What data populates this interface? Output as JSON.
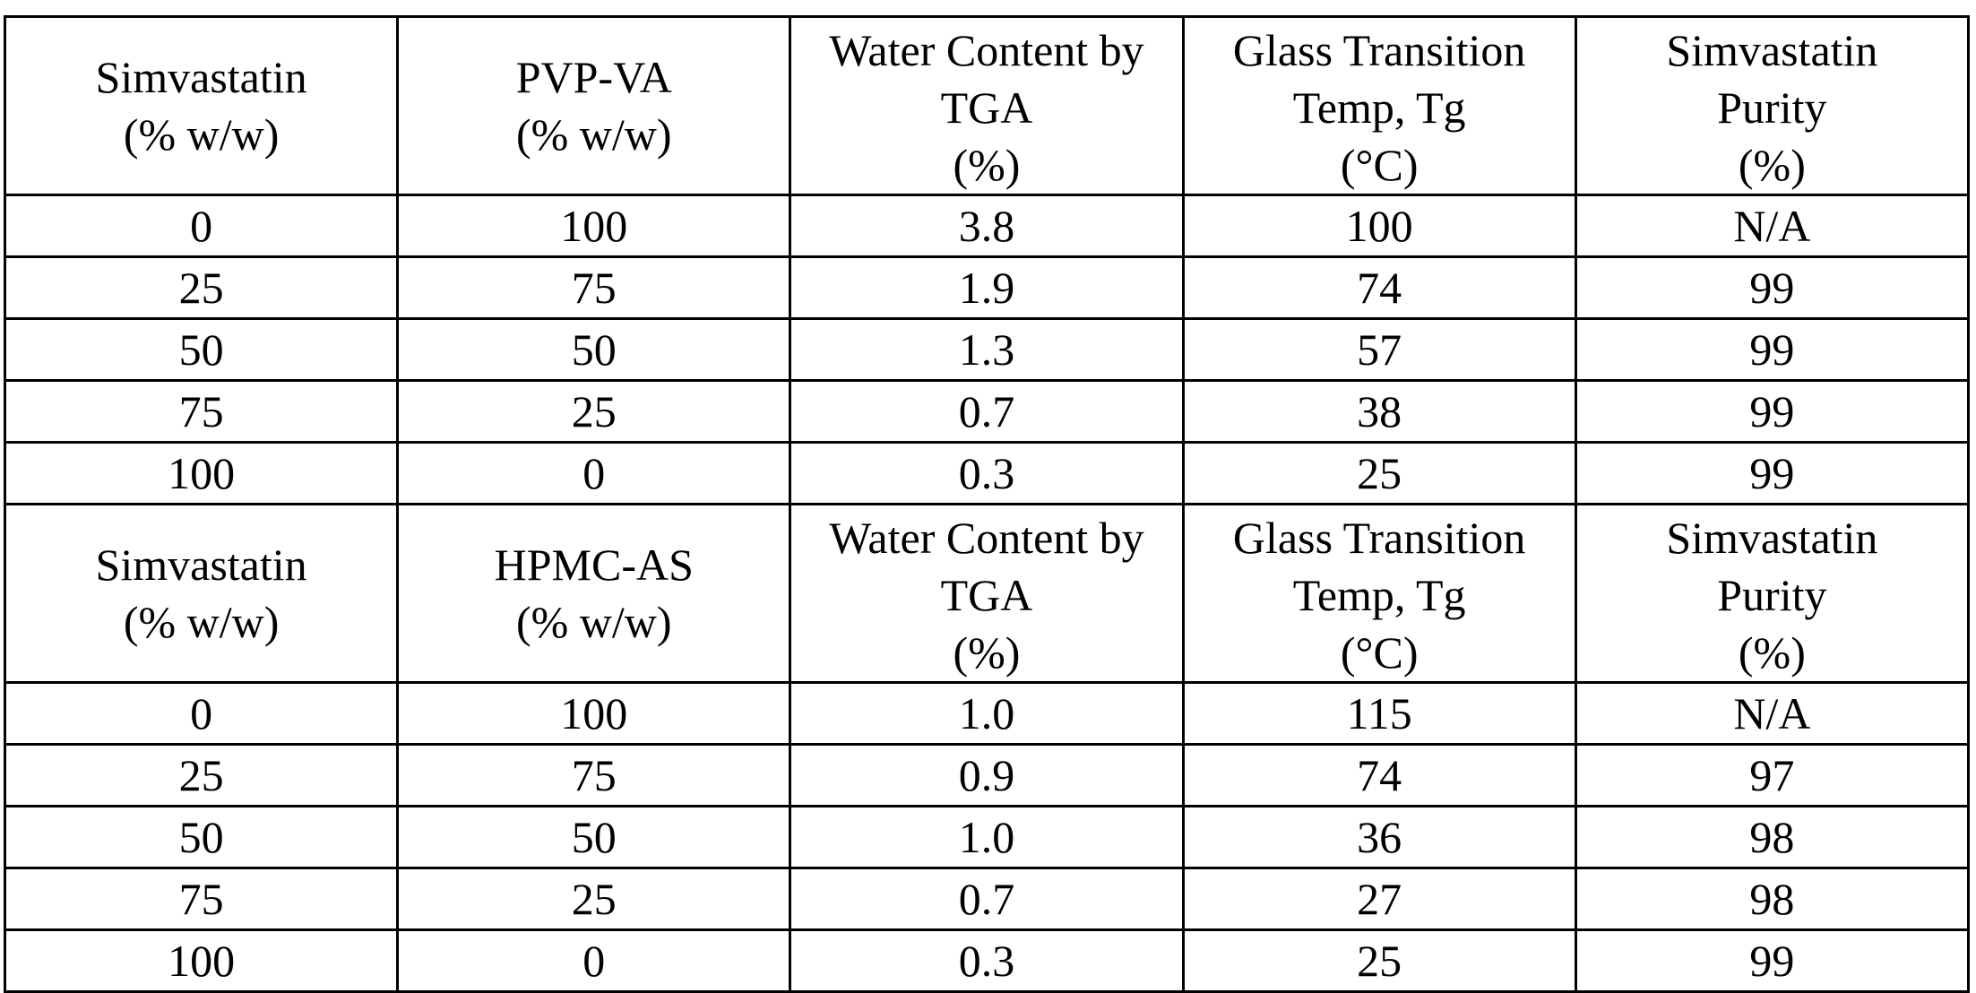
{
  "tables": [
    {
      "headers": [
        [
          "Simvastatin",
          "(% w/w)"
        ],
        [
          "PVP-VA",
          "(% w/w)"
        ],
        [
          "Water Content by",
          "TGA",
          "(%)"
        ],
        [
          "Glass Transition",
          "Temp, Tg",
          "(°C)"
        ],
        [
          "Simvastatin",
          "Purity",
          "(%)"
        ]
      ],
      "rows": [
        [
          "0",
          "100",
          "3.8",
          "100",
          "N/A"
        ],
        [
          "25",
          "75",
          "1.9",
          "74",
          "99"
        ],
        [
          "50",
          "50",
          "1.3",
          "57",
          "99"
        ],
        [
          "75",
          "25",
          "0.7",
          "38",
          "99"
        ],
        [
          "100",
          "0",
          "0.3",
          "25",
          "99"
        ]
      ]
    },
    {
      "headers": [
        [
          "Simvastatin",
          "(% w/w)"
        ],
        [
          "HPMC-AS",
          "(% w/w)"
        ],
        [
          "Water Content by",
          "TGA",
          "(%)"
        ],
        [
          "Glass Transition",
          "Temp, Tg",
          "(°C)"
        ],
        [
          "Simvastatin",
          "Purity",
          "(%)"
        ]
      ],
      "rows": [
        [
          "0",
          "100",
          "1.0",
          "115",
          "N/A"
        ],
        [
          "25",
          "75",
          "0.9",
          "74",
          "97"
        ],
        [
          "50",
          "50",
          "1.0",
          "36",
          "98"
        ],
        [
          "75",
          "25",
          "0.7",
          "27",
          "98"
        ],
        [
          "100",
          "0",
          "0.3",
          "25",
          "99"
        ]
      ]
    }
  ]
}
